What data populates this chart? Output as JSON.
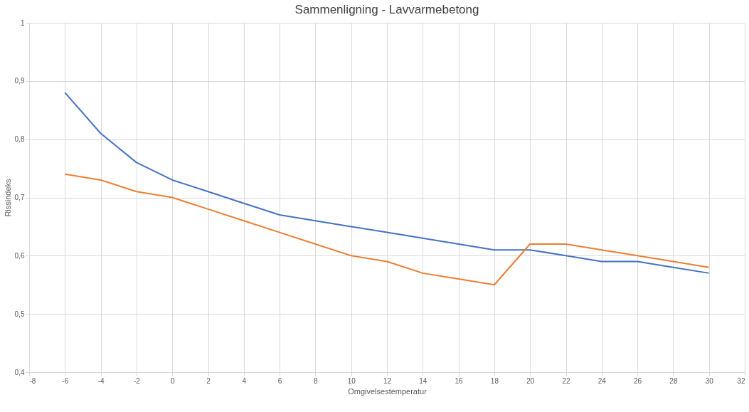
{
  "chart_data": {
    "type": "line",
    "title": "Sammenligning - Lavvarmebetong",
    "xlabel": "Omgivelsestemperatur",
    "ylabel": "Rissindeks",
    "x": [
      -6,
      -4,
      -2,
      0,
      2,
      4,
      6,
      8,
      10,
      12,
      14,
      16,
      18,
      20,
      22,
      24,
      26,
      28,
      30
    ],
    "series": [
      {
        "color": "#4472c4",
        "values": [
          0.88,
          0.81,
          0.76,
          0.73,
          0.71,
          0.69,
          0.67,
          0.66,
          0.65,
          0.64,
          0.63,
          0.62,
          0.61,
          0.61,
          0.6,
          0.59,
          0.59,
          0.58,
          0.57
        ]
      },
      {
        "color": "#ed7d31",
        "values": [
          0.74,
          0.73,
          0.71,
          0.7,
          0.68,
          0.66,
          0.64,
          0.62,
          0.6,
          0.59,
          0.57,
          0.56,
          0.55,
          0.62,
          0.62,
          0.61,
          0.6,
          0.59,
          0.58
        ]
      }
    ],
    "xlim": [
      -8,
      32
    ],
    "xticks": [
      -8,
      -6,
      -4,
      -2,
      0,
      2,
      4,
      6,
      8,
      10,
      12,
      14,
      16,
      18,
      20,
      22,
      24,
      26,
      28,
      30,
      32
    ],
    "ylim": [
      0.4,
      1
    ],
    "yticks": [
      {
        "value": 0.4,
        "label": "0,4"
      },
      {
        "value": 0.5,
        "label": "0,5"
      },
      {
        "value": 0.6,
        "label": "0,6"
      },
      {
        "value": 0.7,
        "label": "0,7"
      },
      {
        "value": 0.8,
        "label": "0,8"
      },
      {
        "value": 0.9,
        "label": "0,9"
      },
      {
        "value": 1,
        "label": "1"
      }
    ],
    "grid": true,
    "legend": false,
    "marker": "none",
    "line_style": "solid"
  }
}
